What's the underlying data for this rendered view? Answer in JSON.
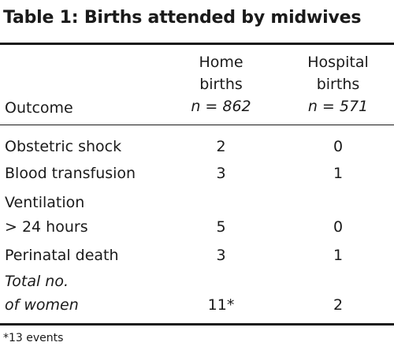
{
  "title": "Table 1: Births attended by midwives",
  "header": {
    "outcome": "Outcome",
    "home_line1": "Home",
    "home_line2": "births",
    "home_n": "n = 862",
    "hosp_line1": "Hospital",
    "hosp_line2": "births",
    "hosp_n": "n = 571"
  },
  "rows": [
    {
      "label1": "Obstetric shock",
      "home": "2",
      "hospital": "0"
    },
    {
      "label1": "Blood transfusion",
      "home": "3",
      "hospital": "1"
    },
    {
      "label1": "Ventilation",
      "label2": "> 24 hours",
      "home": "5",
      "hospital": "0"
    },
    {
      "label1": "Perinatal death",
      "home": "3",
      "hospital": "1"
    },
    {
      "label1": "Total no.",
      "label2": "of women",
      "home": "11*",
      "hospital": "2"
    }
  ],
  "footnote": "*13 events"
}
